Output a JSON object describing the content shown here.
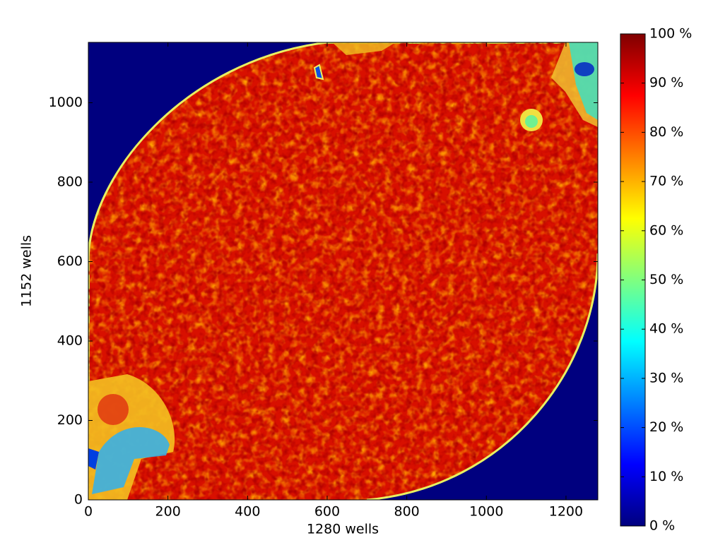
{
  "chart_data": {
    "type": "heatmap",
    "colormap": "jet",
    "xlabel": "1280 wells",
    "ylabel": "1152 wells",
    "xlim": [
      0,
      1280
    ],
    "ylim": [
      0,
      1152
    ],
    "xticks": [
      0,
      200,
      400,
      600,
      800,
      1000,
      1200
    ],
    "yticks": [
      0,
      200,
      400,
      600,
      800,
      1000
    ],
    "colorbar": {
      "lim": [
        0,
        100
      ],
      "ticks": [
        {
          "value": 0,
          "label": "0 %"
        },
        {
          "value": 10,
          "label": "10 %"
        },
        {
          "value": 20,
          "label": "20 %"
        },
        {
          "value": 30,
          "label": "30 %"
        },
        {
          "value": 40,
          "label": "40 %"
        },
        {
          "value": 50,
          "label": "50 %"
        },
        {
          "value": 60,
          "label": "60 %"
        },
        {
          "value": 70,
          "label": "70 %"
        },
        {
          "value": 80,
          "label": "80 %"
        },
        {
          "value": 90,
          "label": "90 %"
        },
        {
          "value": 100,
          "label": "100 %"
        }
      ]
    }
  }
}
